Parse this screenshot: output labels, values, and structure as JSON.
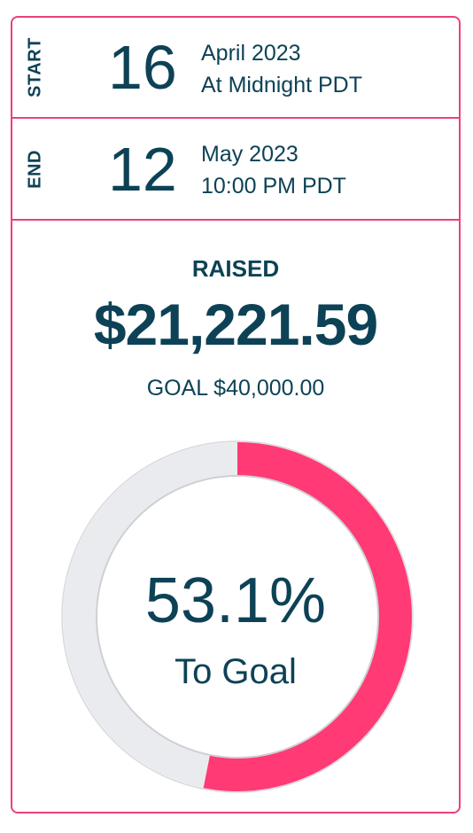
{
  "start": {
    "label": "START",
    "day": "16",
    "month_year": "April 2023",
    "time": "At Midnight PDT"
  },
  "end": {
    "label": "END",
    "day": "12",
    "month_year": "May 2023",
    "time": "10:00 PM PDT"
  },
  "raised": {
    "label": "RAISED",
    "amount": "$21,221.59",
    "goal_text": "GOAL $40,000.00"
  },
  "progress": {
    "fraction": 0.531,
    "percent_text": "53.1%",
    "caption": "To Goal",
    "fill_color": "#ff3a75",
    "track_color": "#eaebee"
  },
  "colors": {
    "accent_border": "#ee3f7d",
    "text": "#0d4256"
  }
}
